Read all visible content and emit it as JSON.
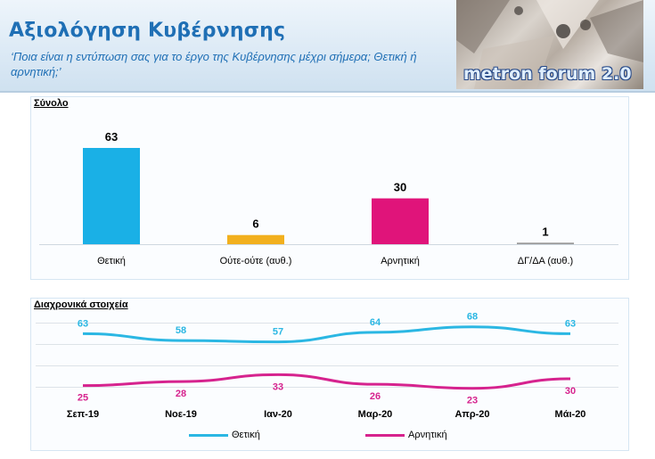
{
  "header": {
    "title": "Αξιολόγηση Κυβέρνησης",
    "question": "‘Ποια είναι η εντύπωση σας για το έργο της Κυβέρνησης μέχρι σήμερα; Θετική ή αρνητική;’",
    "brand": "metron forum 2.0"
  },
  "sections": {
    "total_label": "Σύνολο",
    "trend_label": "Διαχρονικά στοιχεία"
  },
  "colors": {
    "positive": "#1ab0e6",
    "neutral": "#f2b01e",
    "negative": "#e0147a",
    "nodata": "#9a9a9a",
    "trend_positive": "#2bb7e3",
    "trend_negative": "#d6238e"
  },
  "chart_data": [
    {
      "type": "bar",
      "title": "Σύνολο",
      "categories": [
        "Θετική",
        "Ούτε-ούτε (αυθ.)",
        "Αρνητική",
        "ΔΓ/ΔΑ (αυθ.)"
      ],
      "values": [
        63,
        6,
        30,
        1
      ],
      "bar_colors": [
        "#1ab0e6",
        "#f2b01e",
        "#e0147a",
        "#9a9a9a"
      ],
      "ylim": [
        0,
        63
      ]
    },
    {
      "type": "line",
      "title": "Διαχρονικά στοιχεία",
      "x": [
        "Σεπ-19",
        "Νοε-19",
        "Ιαν-20",
        "Μαρ-20",
        "Απρ-20",
        "Μάι-20"
      ],
      "series": [
        {
          "name": "Θετική",
          "values": [
            63,
            58,
            57,
            64,
            68,
            63
          ],
          "color": "#2bb7e3"
        },
        {
          "name": "Αρνητική",
          "values": [
            25,
            28,
            33,
            26,
            23,
            30
          ],
          "color": "#d6238e"
        }
      ],
      "ylim": [
        15,
        75
      ],
      "legend": "bottom"
    }
  ]
}
